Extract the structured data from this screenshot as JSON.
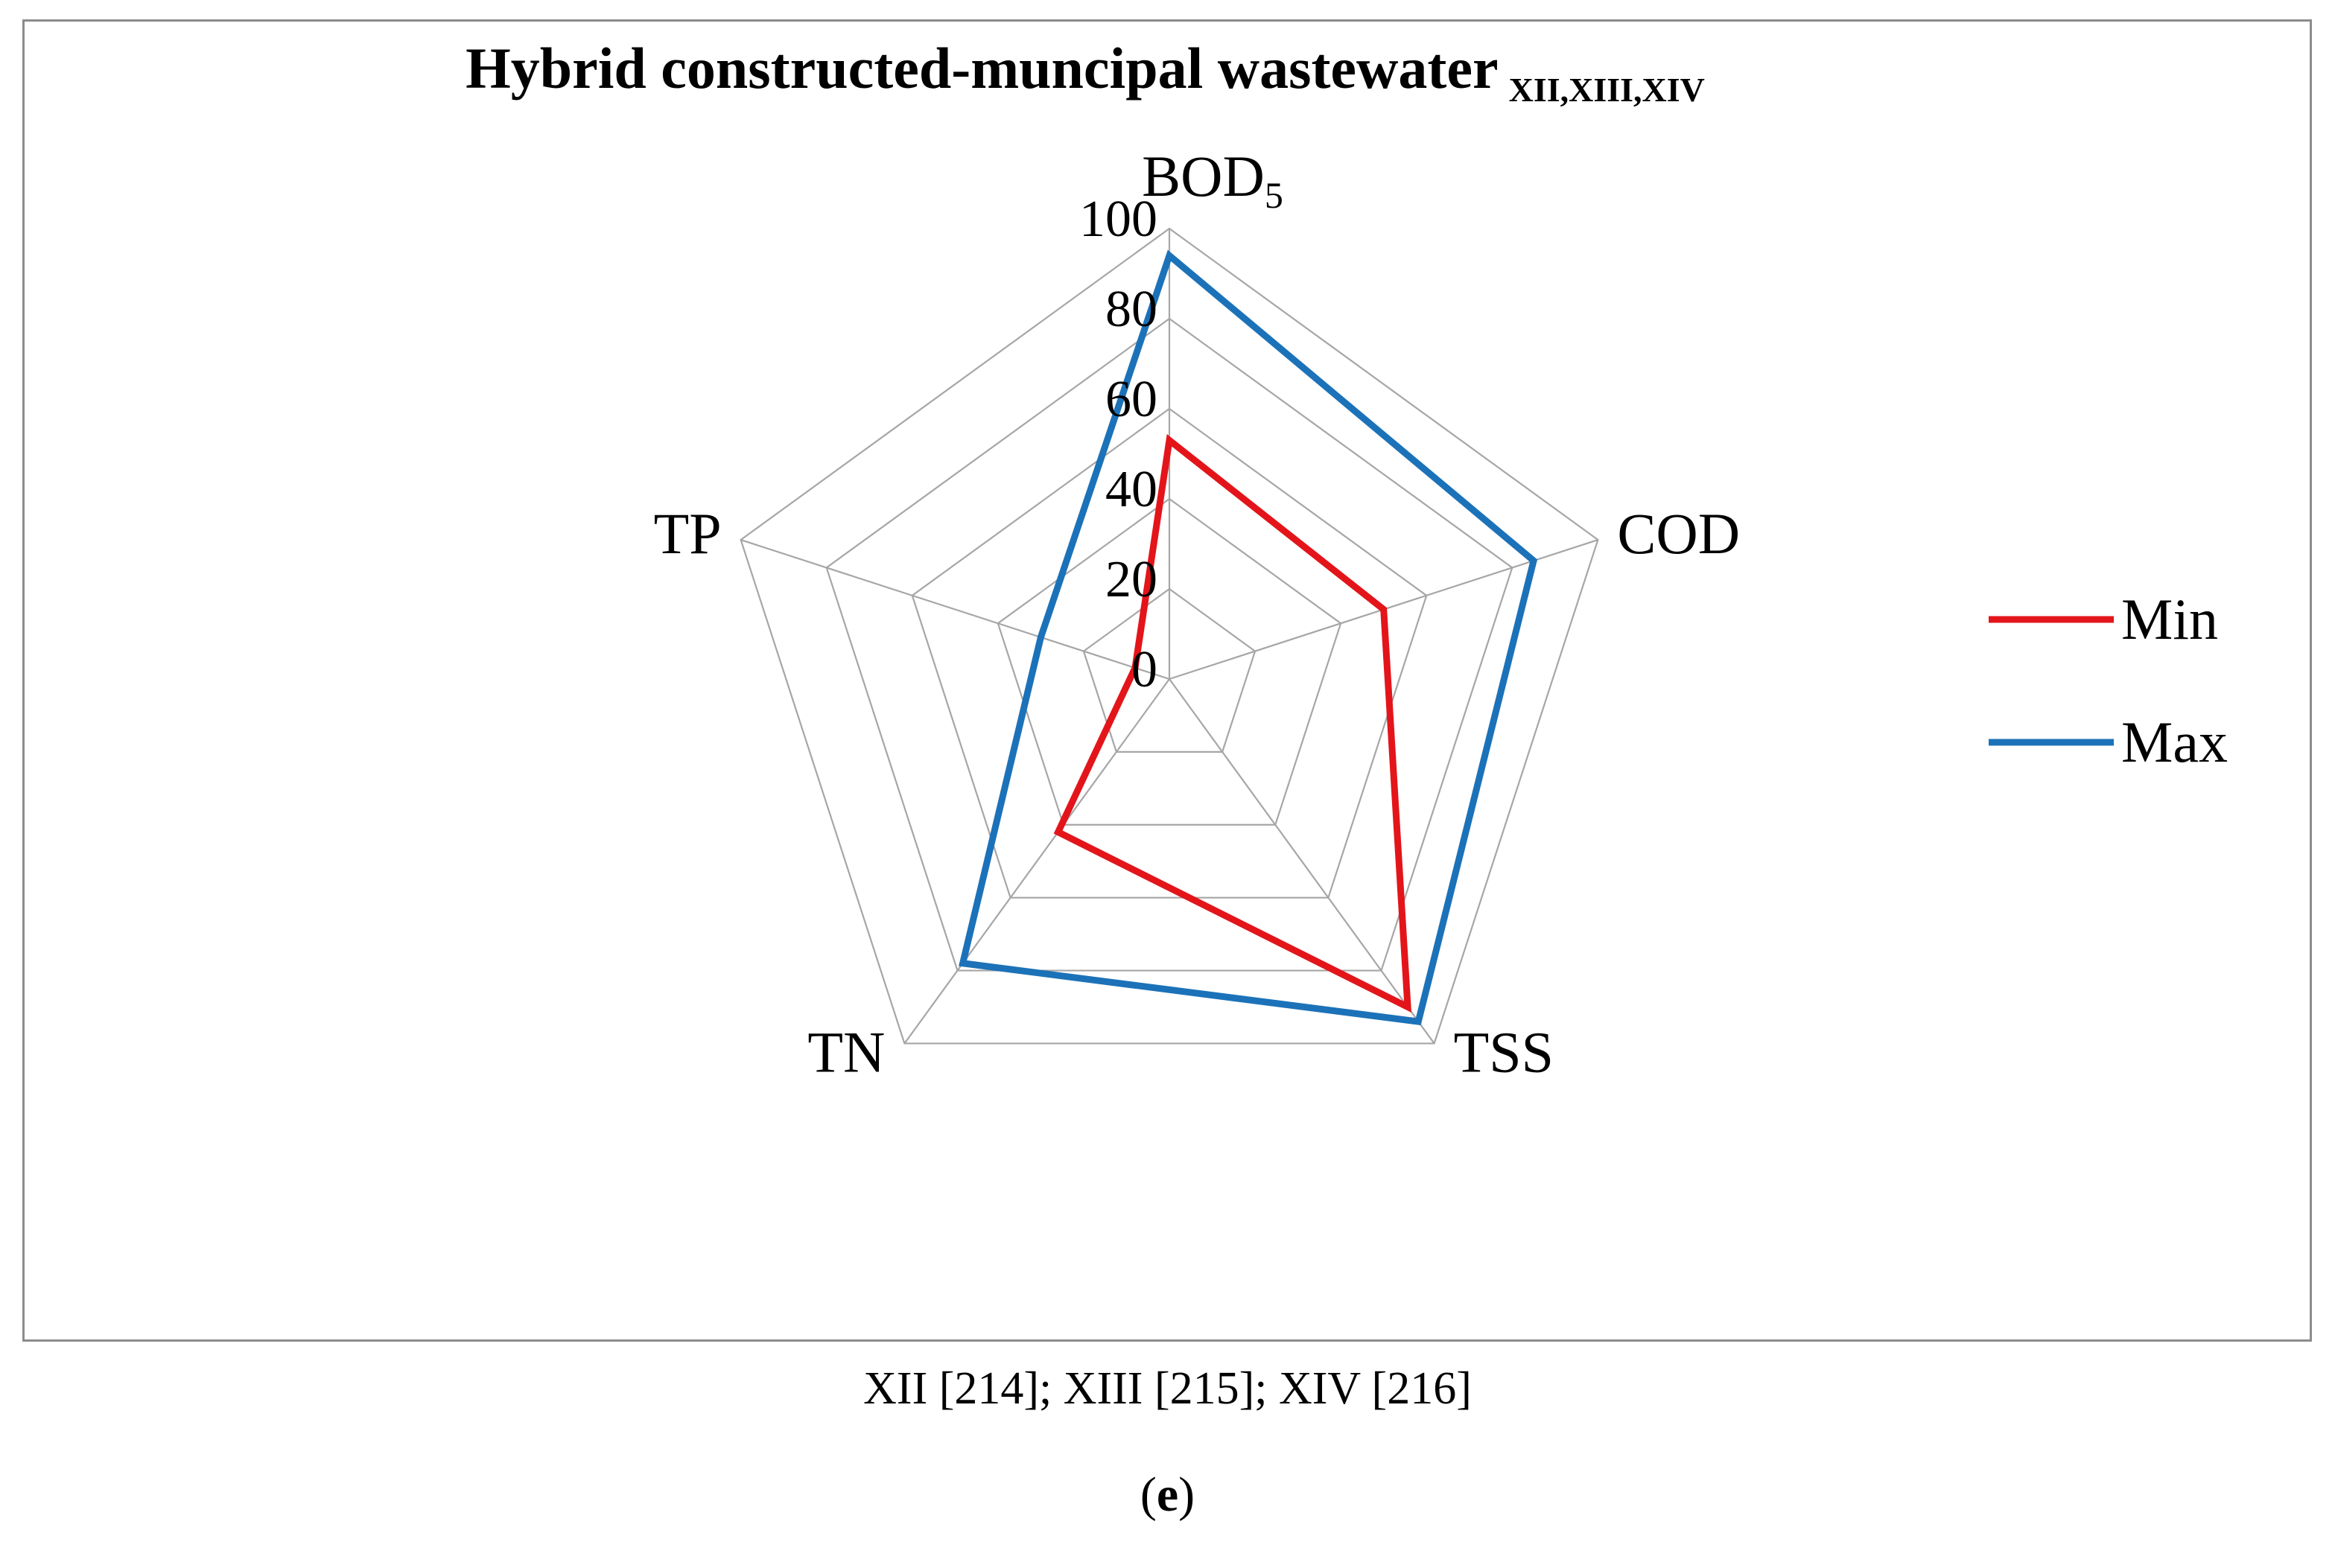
{
  "chart_data": {
    "type": "radar",
    "title": "Hybrid constructed-muncipal wastewater",
    "title_subscript": "XII,XIII,XIV",
    "axes": [
      {
        "label": "BOD",
        "subscript": "5"
      },
      {
        "label": "COD",
        "subscript": ""
      },
      {
        "label": "TSS",
        "subscript": ""
      },
      {
        "label": "TN",
        "subscript": ""
      },
      {
        "label": "TP",
        "subscript": ""
      }
    ],
    "r_range": [
      0,
      100
    ],
    "r_ticks": [
      0,
      20,
      40,
      60,
      80,
      100
    ],
    "grid": true,
    "legend_position": "right",
    "series": [
      {
        "name": "Min",
        "color": "#e3151a",
        "values": [
          53,
          50,
          90,
          42,
          8
        ]
      },
      {
        "name": "Max",
        "color": "#1c72b8",
        "values": [
          94,
          85,
          94,
          78,
          30
        ]
      }
    ]
  },
  "footer": {
    "source_note": "XII [214]; XIII [215]; XIV [216]",
    "panel_open": "(",
    "panel_letter": "e",
    "panel_close": ")"
  }
}
